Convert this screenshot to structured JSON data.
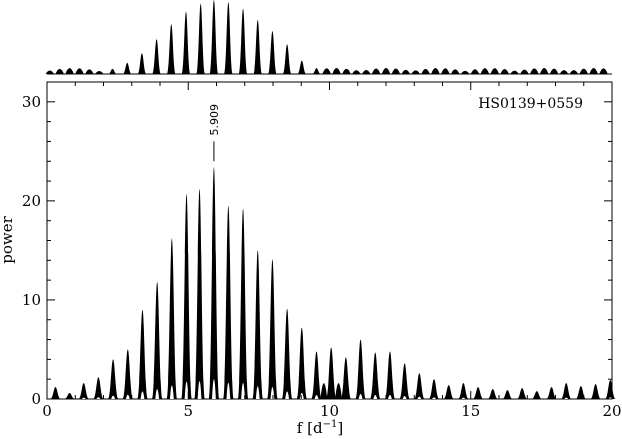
{
  "chart_data": {
    "type": "line",
    "title": "",
    "xlabel": "f",
    "xlabel_unit": "[d",
    "xlabel_unit_sup": "−1",
    "xlabel_unit_close": "]",
    "ylabel": "power",
    "xlim": [
      0,
      20
    ],
    "ylim": [
      0,
      32
    ],
    "x_ticks": [
      0,
      5,
      10,
      15,
      20
    ],
    "y_ticks": [
      0,
      10,
      20,
      30
    ],
    "x_tick_labels": [
      "0",
      "5",
      "10",
      "15",
      "20"
    ],
    "y_tick_labels": [
      "0",
      "10",
      "20",
      "30"
    ],
    "grid": false,
    "annotations": {
      "star_name": "HS0139+0559",
      "peak_label": "5.909",
      "peak_frequency": 5.909
    },
    "series": [
      {
        "kind": "power-spectrum",
        "peak_spacing": 0.52,
        "peaks": [
          {
            "x": 0.3,
            "y": 1.2
          },
          {
            "x": 0.8,
            "y": 0.6
          },
          {
            "x": 1.3,
            "y": 1.6
          },
          {
            "x": 1.82,
            "y": 2.2
          },
          {
            "x": 2.34,
            "y": 4.0
          },
          {
            "x": 2.86,
            "y": 5.0
          },
          {
            "x": 3.38,
            "y": 9.0
          },
          {
            "x": 3.9,
            "y": 11.8
          },
          {
            "x": 4.42,
            "y": 16.2
          },
          {
            "x": 4.94,
            "y": 20.7
          },
          {
            "x": 5.4,
            "y": 21.2
          },
          {
            "x": 5.909,
            "y": 23.4
          },
          {
            "x": 6.42,
            "y": 19.5
          },
          {
            "x": 6.94,
            "y": 19.2
          },
          {
            "x": 7.46,
            "y": 15.0
          },
          {
            "x": 7.98,
            "y": 14.1
          },
          {
            "x": 8.5,
            "y": 9.1
          },
          {
            "x": 9.02,
            "y": 7.2
          },
          {
            "x": 9.54,
            "y": 4.8
          },
          {
            "x": 10.06,
            "y": 5.2
          },
          {
            "x": 10.58,
            "y": 4.2
          },
          {
            "x": 11.1,
            "y": 6.0
          },
          {
            "x": 11.62,
            "y": 4.7
          },
          {
            "x": 12.14,
            "y": 4.8
          },
          {
            "x": 12.66,
            "y": 3.6
          },
          {
            "x": 13.18,
            "y": 2.6
          },
          {
            "x": 13.7,
            "y": 2.0
          },
          {
            "x": 14.22,
            "y": 1.4
          },
          {
            "x": 14.74,
            "y": 1.6
          },
          {
            "x": 15.26,
            "y": 1.2
          },
          {
            "x": 15.78,
            "y": 1.0
          },
          {
            "x": 16.3,
            "y": 0.9
          },
          {
            "x": 16.82,
            "y": 1.1
          },
          {
            "x": 17.34,
            "y": 0.8
          },
          {
            "x": 17.86,
            "y": 1.2
          },
          {
            "x": 18.38,
            "y": 1.6
          },
          {
            "x": 18.9,
            "y": 1.3
          },
          {
            "x": 19.42,
            "y": 1.5
          },
          {
            "x": 19.94,
            "y": 1.9
          }
        ]
      }
    ],
    "window_function": {
      "peak_spacing": 0.52,
      "peaks": [
        {
          "x": 3.36,
          "y": 0.28
        },
        {
          "x": 3.88,
          "y": 0.47
        },
        {
          "x": 4.4,
          "y": 0.67
        },
        {
          "x": 4.92,
          "y": 0.84
        },
        {
          "x": 5.44,
          "y": 0.95
        },
        {
          "x": 5.909,
          "y": 1.0
        },
        {
          "x": 6.42,
          "y": 0.97
        },
        {
          "x": 6.94,
          "y": 0.88
        },
        {
          "x": 7.46,
          "y": 0.73
        },
        {
          "x": 7.98,
          "y": 0.58
        },
        {
          "x": 8.5,
          "y": 0.4
        },
        {
          "x": 2.84,
          "y": 0.15
        },
        {
          "x": 2.32,
          "y": 0.07
        },
        {
          "x": 9.02,
          "y": 0.18
        },
        {
          "x": 9.54,
          "y": 0.08
        }
      ]
    }
  }
}
